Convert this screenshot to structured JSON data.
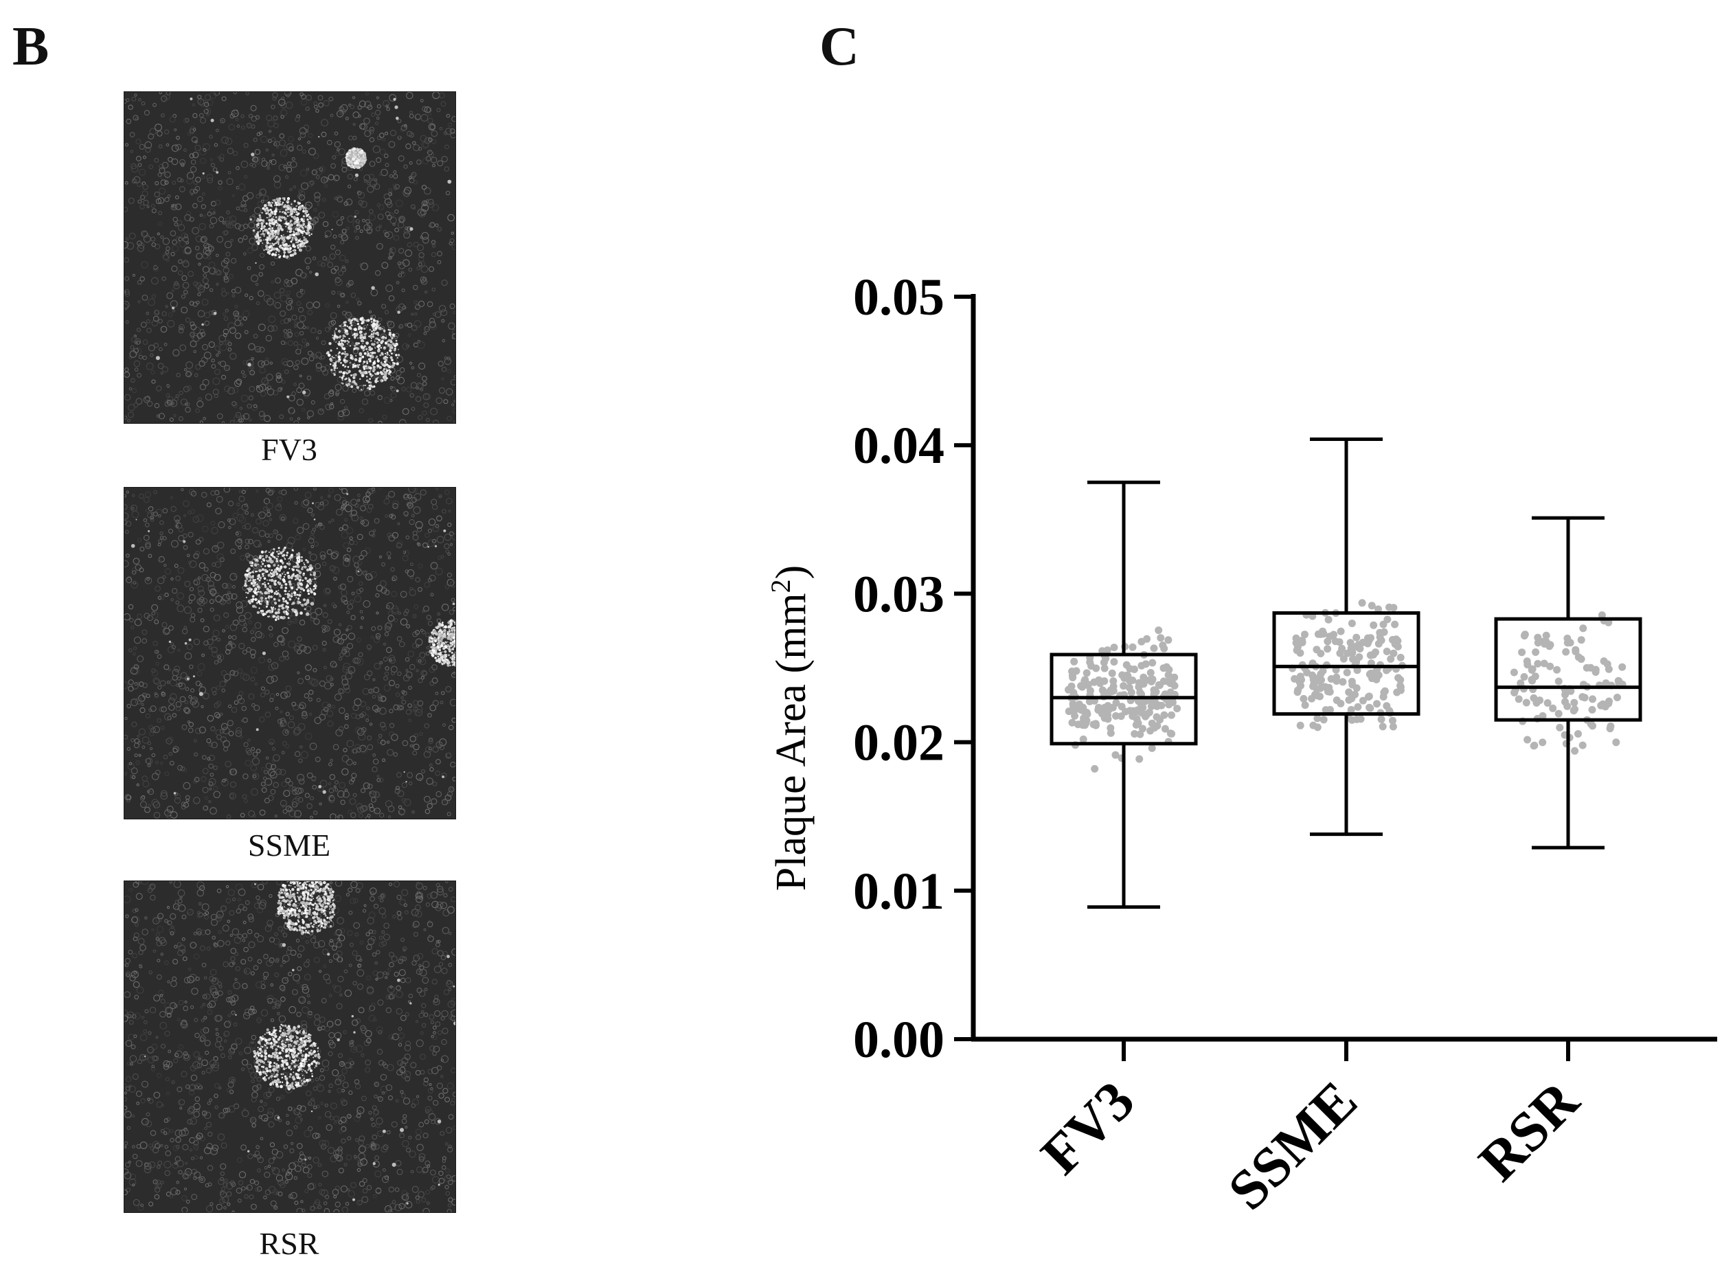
{
  "panels": {
    "b_letter": "B",
    "c_letter": "C",
    "images": [
      {
        "label": "FV3",
        "plaques": [
          [
            0.48,
            0.41,
            0.09
          ],
          [
            0.72,
            0.79,
            0.11
          ],
          [
            0.7,
            0.2,
            0.03
          ]
        ]
      },
      {
        "label": "SSME",
        "plaques": [
          [
            0.47,
            0.29,
            0.11
          ],
          [
            0.99,
            0.47,
            0.07
          ]
        ]
      },
      {
        "label": "RSR",
        "plaques": [
          [
            0.55,
            0.07,
            0.09
          ],
          [
            0.49,
            0.53,
            0.1
          ]
        ]
      }
    ]
  },
  "chart_data": {
    "type": "box",
    "ylabel": "Plaque Area (mm",
    "ylabel_sup": "2",
    "ylabel_close": ")",
    "ylim": [
      0,
      0.05
    ],
    "yticks": [
      "0.00",
      "0.01",
      "0.02",
      "0.03",
      "0.04",
      "0.05"
    ],
    "categories": [
      "FV3",
      "SSME",
      "RSR"
    ],
    "boxes": [
      {
        "name": "FV3",
        "min": 0.0089,
        "q1": 0.0199,
        "median": 0.023,
        "q3": 0.0259,
        "max": 0.0375,
        "n": 210
      },
      {
        "name": "SSME",
        "min": 0.0138,
        "q1": 0.0219,
        "median": 0.0251,
        "q3": 0.0287,
        "max": 0.0404,
        "n": 180
      },
      {
        "name": "RSR",
        "min": 0.0129,
        "q1": 0.0215,
        "median": 0.0237,
        "q3": 0.0283,
        "max": 0.0351,
        "n": 110
      }
    ],
    "point_color": "#b4b4b4",
    "box_color": "#000000",
    "grid": false
  }
}
